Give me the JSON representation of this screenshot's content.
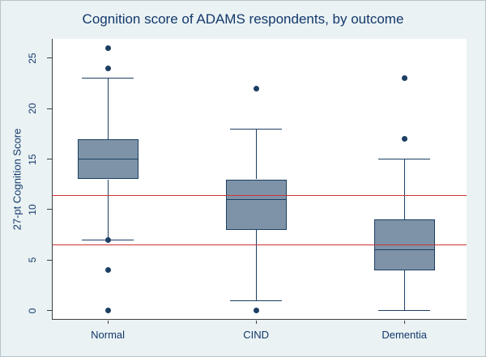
{
  "chart_data": {
    "type": "boxplot",
    "title": "Cognition score of ADAMS respondents, by outcome",
    "ylabel": "27-pt Cognition Score",
    "xlabel": "",
    "ylim": [
      -0.9,
      26.9
    ],
    "yticks": [
      0,
      5,
      10,
      15,
      20,
      25
    ],
    "grid": false,
    "legend": "none",
    "categories": [
      "Normal",
      "CIND",
      "Dementia"
    ],
    "series": [
      {
        "category": "Normal",
        "q1": 13,
        "median": 15,
        "q3": 17,
        "whisker_low": 7,
        "whisker_high": 23,
        "outliers": [
          26,
          24,
          7,
          4,
          0
        ]
      },
      {
        "category": "CIND",
        "q1": 8,
        "median": 11,
        "q3": 13,
        "whisker_low": 1,
        "whisker_high": 18,
        "outliers": [
          22,
          0
        ]
      },
      {
        "category": "Dementia",
        "q1": 4,
        "median": 6,
        "q3": 9,
        "whisker_low": 0,
        "whisker_high": 15,
        "outliers": [
          23,
          17
        ]
      }
    ],
    "reference_lines": [
      {
        "y": 11.4,
        "color": "#cc3434"
      },
      {
        "y": 6.5,
        "color": "#cc3434"
      }
    ],
    "colors": {
      "background": "#eaf2f3",
      "plot_background": "#ffffff",
      "box_fill": "#7e93a7",
      "box_border": "#1c3f63",
      "whisker": "#1c3f63",
      "outlier": "#1c3f63",
      "text": "#13386c",
      "axis": "#404040"
    }
  }
}
